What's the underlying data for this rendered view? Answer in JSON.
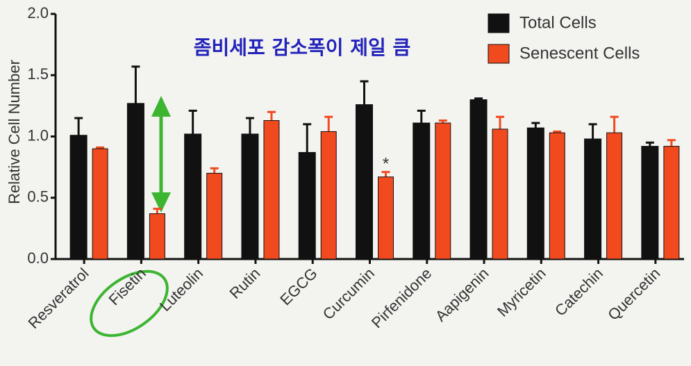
{
  "chart_data": {
    "type": "bar",
    "y_label": "Relative Cell Number",
    "annotations": [
      "좀비세포 감소폭이 제일 큼",
      "*"
    ],
    "categories": [
      "Resveratrol",
      "Fisetin",
      "Luteolin",
      "Rutin",
      "EGCG",
      "Curcumin",
      "Pirfenidone",
      "Aapigenin",
      "Myricetin",
      "Catechin",
      "Quercetin"
    ],
    "series": [
      {
        "name": "Total Cells",
        "color": "#111111",
        "values": [
          1.01,
          1.27,
          1.02,
          1.02,
          0.87,
          1.26,
          1.11,
          1.3,
          1.07,
          0.98,
          0.92
        ],
        "errors": [
          0.14,
          0.3,
          0.19,
          0.13,
          0.23,
          0.19,
          0.1,
          0.01,
          0.04,
          0.12,
          0.03
        ]
      },
      {
        "name": "Senescent Cells",
        "color": "#f04a1e",
        "values": [
          0.9,
          0.37,
          0.7,
          1.13,
          1.04,
          0.67,
          1.11,
          1.06,
          1.03,
          1.03,
          0.92
        ],
        "errors": [
          0.01,
          0.04,
          0.04,
          0.07,
          0.12,
          0.04,
          0.02,
          0.1,
          0.01,
          0.13,
          0.05
        ]
      }
    ],
    "ylim": [
      0,
      2
    ],
    "yticks": [
      {
        "value": 0,
        "label": "0.0"
      },
      0.5,
      {
        "value": 1,
        "label": "1.0"
      },
      1.5,
      {
        "value": 2,
        "label": "2.0"
      }
    ],
    "legend": "upper right",
    "grid": false
  }
}
